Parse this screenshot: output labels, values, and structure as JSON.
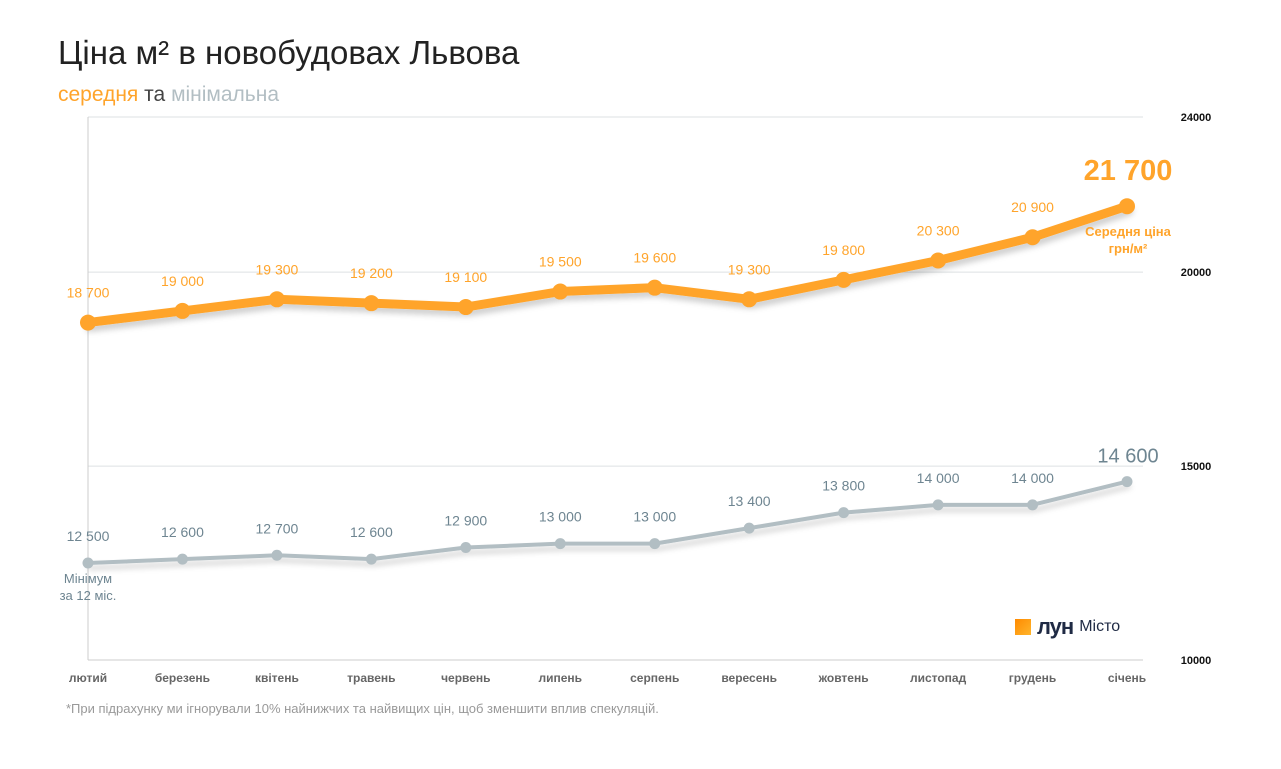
{
  "title": "Ціна м² в новобудовах Львова",
  "subtitle": {
    "avg": "середня",
    "and": "та",
    "min": "мінімальна"
  },
  "footnote": "*При підрахунку ми ігнорували 10% найнижчих та найвищих цін, щоб зменшити вплив спекуляцій.",
  "logo": {
    "brand": "лун",
    "sub": "Місто"
  },
  "colors": {
    "avg": "#FFA42B",
    "min": "#B2BEC3",
    "min_label": "#6E8591"
  },
  "chart_data": {
    "type": "line",
    "title": "Ціна м² в новобудовах Львова",
    "categories": [
      "лютий",
      "березень",
      "квітень",
      "травень",
      "червень",
      "липень",
      "серпень",
      "вересень",
      "жовтень",
      "листопад",
      "грудень",
      "січень"
    ],
    "series": [
      {
        "name": "середня",
        "values": [
          18700,
          19000,
          19300,
          19200,
          19100,
          19500,
          19600,
          19300,
          19800,
          20300,
          20900,
          21700
        ],
        "labels": [
          "18 700",
          "19 000",
          "19 300",
          "19 200",
          "19 100",
          "19 500",
          "19 600",
          "19 300",
          "19 800",
          "20 300",
          "20 900",
          "21 700"
        ]
      },
      {
        "name": "мінімальна",
        "values": [
          12500,
          12600,
          12700,
          12600,
          12900,
          13000,
          13000,
          13400,
          13800,
          14000,
          14000,
          14600
        ],
        "labels": [
          "12 500",
          "12 600",
          "12 700",
          "12 600",
          "12 900",
          "13 000",
          "13 000",
          "13 400",
          "13 800",
          "14 000",
          "14 000",
          "14 600"
        ]
      }
    ],
    "annotations": {
      "avg_note_1": "Середня ціна",
      "avg_note_2": "грн/м²",
      "min_note_1": "Мінімум",
      "min_note_2": "за 12 міс."
    },
    "yticks": [
      "10000",
      "15000",
      "20000",
      "24000"
    ],
    "ylim": [
      10000,
      24000
    ],
    "grid": true
  }
}
